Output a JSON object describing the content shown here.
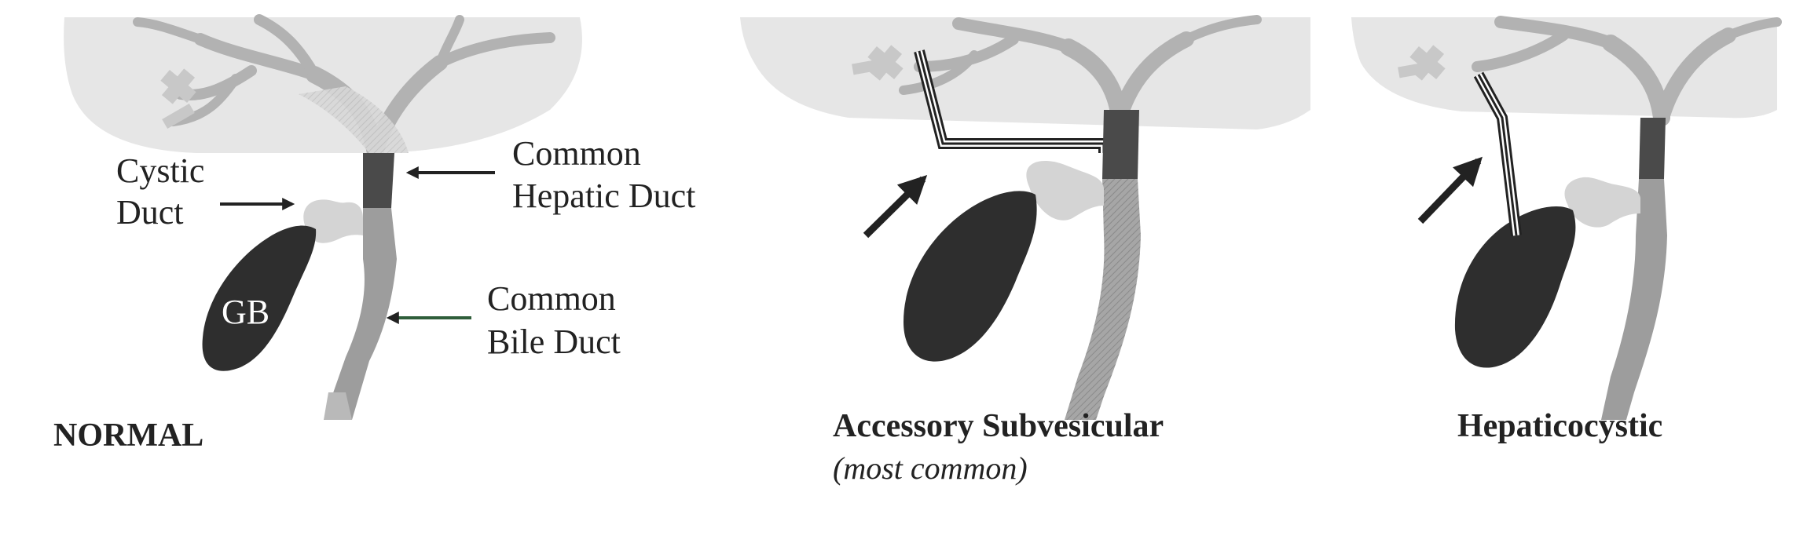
{
  "colors": {
    "liver": "#e6e6e6",
    "hepatic_branches": "#b2b2b2",
    "common_hepatic_duct": "#4a4a4a",
    "common_bile_duct": "#9d9d9d",
    "cystic_duct": "#d4d4d4",
    "gallbladder": "#2e2e2e",
    "arrow": "#222222"
  },
  "panels": [
    {
      "id": "normal",
      "caption": "NORMAL",
      "labels": {
        "cystic_duct": [
          "Cystic",
          "Duct"
        ],
        "common_hepatic_duct": [
          "Common",
          "Hepatic Duct"
        ],
        "common_bile_duct": [
          "Common",
          "Bile Duct"
        ],
        "gallbladder": "GB"
      }
    },
    {
      "id": "accessory-subvesicular",
      "caption": "Accessory Subvesicular",
      "subcaption": "(most common)"
    },
    {
      "id": "hepaticocystic",
      "caption": "Hepaticocystic"
    }
  ]
}
